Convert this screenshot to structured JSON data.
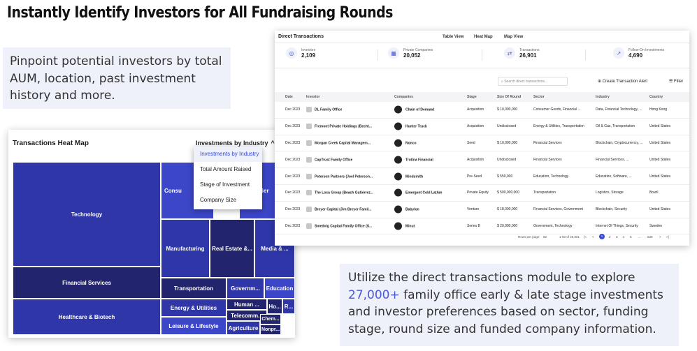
{
  "headline": "Instantly Identify Investors for All Fundraising Rounds",
  "callout_left": "Pinpoint potential investors by total AUM, location, past investment history and more.",
  "callout_right": {
    "before": "Utilize the direct transactions module to explore ",
    "highlight": "27,000+",
    "after": " family office early & late stage investments and investor preferences based on sector, funding stage, round size and funded company information."
  },
  "heatmap": {
    "title": "Transactions Heat Map",
    "dropdown_label": "Investments by Industry",
    "menu": [
      "Investments by Industry",
      "Total Amount Raised",
      "Stage of Investment",
      "Company Size"
    ],
    "tiles": [
      {
        "label": "Technology"
      },
      {
        "label": "Consu"
      },
      {
        "label": "s Ser"
      },
      {
        "label": "Financial Services"
      },
      {
        "label": "Healthcare & Biotech"
      },
      {
        "label": "Manufacturing"
      },
      {
        "label": "Real Estate &..."
      },
      {
        "label": "Media & ..."
      },
      {
        "label": "Transportation"
      },
      {
        "label": "Governm..."
      },
      {
        "label": "Education"
      },
      {
        "label": "Energy & Utilities"
      },
      {
        "label": "Human ..."
      },
      {
        "label": "Ho..."
      },
      {
        "label": "R..."
      },
      {
        "label": "Telecomm..."
      },
      {
        "label": "Leisure & Lifestyle"
      },
      {
        "label": "Agriculture"
      },
      {
        "label": "Chem..."
      },
      {
        "label": "Nonpr..."
      }
    ],
    "colors": {
      "dark": "#22256e",
      "mid": "#2f36a8",
      "bright": "#3b46c8"
    }
  },
  "transactions": {
    "title": "Direct Transactions",
    "tabs": [
      "Table View",
      "Heat Map",
      "Map View"
    ],
    "stats": [
      {
        "label": "Investors",
        "value": "2,109",
        "icon": "investors-icon"
      },
      {
        "label": "Private Companies",
        "value": "20,052",
        "icon": "building-icon"
      },
      {
        "label": "Transactions",
        "value": "26,901",
        "icon": "transactions-icon"
      },
      {
        "label": "Follow-On Investments",
        "value": "4,690",
        "icon": "follow-on-icon"
      }
    ],
    "search_placeholder": "Search direct transactions...",
    "alert_label": "Create Transaction Alert",
    "filter_label": "Filter",
    "columns": [
      "Date",
      "Investor",
      "Companies",
      "Stage",
      "Size Of Round",
      "Sector",
      "Industry",
      "Country"
    ],
    "rows": [
      {
        "date": "Dec 2023",
        "investor": "DL Family Office",
        "company": "Chain of Demand",
        "stage": "Acquisition",
        "size": "$ 10,000,000",
        "sector": "Consumer    Goods,    Financial ...",
        "industry": "Data,  Financial  Technology, ...",
        "country": "Hong Kong"
      },
      {
        "date": "Dec 2023",
        "investor": "Fremont Private Holdings (Becht...",
        "company": "Hunter Truck",
        "stage": "Acquisition",
        "size": "Undisclosed",
        "sector": "Energy & Utilities, Transportation",
        "industry": "Oil & Gas, Transportation",
        "country": "United States"
      },
      {
        "date": "Dec 2023",
        "investor": "Morgan Creek Capital Managem...",
        "company": "Nonco",
        "stage": "Seed",
        "size": "$ 10,000,000",
        "sector": "Financial Services",
        "industry": "Blockchain,  Cryptocurrency, ...",
        "country": "United States"
      },
      {
        "date": "Dec 2023",
        "investor": "CapTrust Family Office",
        "company": "Trotina Financial",
        "stage": "Acquisition",
        "size": "Undisclosed",
        "sector": "Financial Services",
        "industry": "Financial            Services, ...",
        "country": "United States"
      },
      {
        "date": "Dec 2023",
        "investor": "Peterson Partners (Joel Peterson...",
        "company": "Mindsmith",
        "stage": "Pre-Seed",
        "size": "$ 550,000",
        "sector": "Education, Technology",
        "industry": "Education,           Software, ...",
        "country": "United States"
      },
      {
        "date": "Dec 2023",
        "investor": "The Loca Group (Beach Gutiérrez...",
        "company": "Emergent Cold LatAm",
        "stage": "Private Equity",
        "size": "$ 500,000,000",
        "sector": "Transportation",
        "industry": "Logistics, Storage",
        "country": "Brazil"
      },
      {
        "date": "Dec 2023",
        "investor": "Breyer Capital (Jim Breyer Famil...",
        "company": "Babylon",
        "stage": "Venture",
        "size": "$ 18,000,000",
        "sector": "Financial Services, Government",
        "industry": "Blockchain, Security",
        "country": "United States"
      },
      {
        "date": "Dec 2023",
        "investor": "Smedvig Capital Family Office (S...",
        "company": "Minut",
        "stage": "Series B",
        "size": "$ 20,000,000",
        "sector": "Government, Technology",
        "industry": "Internet Of Things, Security",
        "country": "Sweden"
      }
    ],
    "pager": {
      "rows_label": "Rows per page:",
      "rows_value": "50",
      "range": "1-50 of 26,901",
      "pages": [
        "1",
        "2",
        "3",
        "4",
        "5",
        "...",
        "539"
      ]
    }
  }
}
